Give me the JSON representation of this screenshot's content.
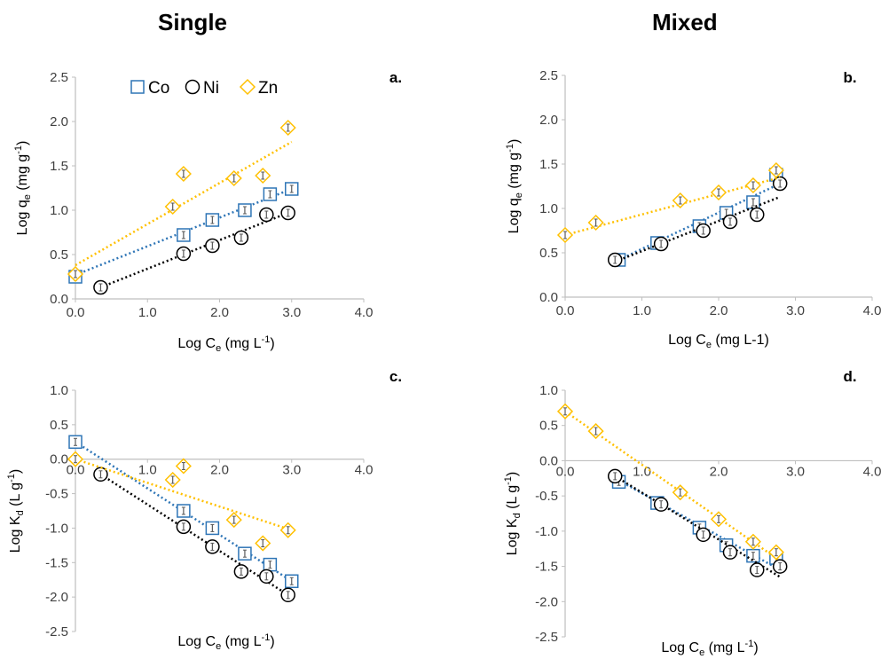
{
  "titles": {
    "left": "Single",
    "right": "Mixed"
  },
  "legend": [
    {
      "name": "Co",
      "marker": "square",
      "color": "#2E75B6"
    },
    {
      "name": "Ni",
      "marker": "circle",
      "color": "#000000"
    },
    {
      "name": "Zn",
      "marker": "diamond",
      "color": "#FFC000"
    }
  ],
  "chart_data": [
    {
      "id": "a",
      "type": "scatter",
      "panel_label": "a.",
      "xlabel": {
        "main": "Log C",
        "sub": "e",
        "tail": " (mg L",
        "sup": "-1",
        "end": ")"
      },
      "ylabel": {
        "main": "Log q",
        "sub": "e",
        "tail": " (mg g",
        "sup": "-1",
        "end": ")"
      },
      "xlim": [
        0,
        4
      ],
      "ylim": [
        0,
        2.5
      ],
      "xticks": [
        "0.0",
        "1.0",
        "2.0",
        "3.0",
        "4.0"
      ],
      "yticks": [
        "0.0",
        "0.5",
        "1.0",
        "1.5",
        "2.0",
        "2.5"
      ],
      "grid": false,
      "legend_position": "top-left",
      "series": [
        {
          "name": "Co",
          "trend": [
            [
              0,
              0.27
            ],
            [
              3.0,
              1.24
            ]
          ],
          "points": [
            [
              0,
              0.25
            ],
            [
              1.5,
              0.72
            ],
            [
              1.9,
              0.89
            ],
            [
              2.35,
              1.0
            ],
            [
              2.7,
              1.18
            ],
            [
              3.0,
              1.24
            ]
          ]
        },
        {
          "name": "Ni",
          "trend": [
            [
              0.35,
              0.13
            ],
            [
              2.95,
              0.97
            ]
          ],
          "points": [
            [
              0.35,
              0.13
            ],
            [
              1.5,
              0.51
            ],
            [
              1.9,
              0.6
            ],
            [
              2.3,
              0.69
            ],
            [
              2.65,
              0.95
            ],
            [
              2.95,
              0.97
            ]
          ]
        },
        {
          "name": "Zn",
          "trend": [
            [
              0,
              0.38
            ],
            [
              3.0,
              1.77
            ]
          ],
          "points": [
            [
              0,
              0.28
            ],
            [
              1.35,
              1.04
            ],
            [
              1.5,
              1.41
            ],
            [
              2.2,
              1.36
            ],
            [
              2.6,
              1.39
            ],
            [
              2.95,
              1.93
            ]
          ]
        }
      ]
    },
    {
      "id": "b",
      "type": "scatter",
      "panel_label": "b.",
      "xlabel": {
        "main": "Log C",
        "sub": "e",
        "tail": " (mg L-1)",
        "sup": "",
        "end": ""
      },
      "ylabel": {
        "main": "Log q",
        "sub": "e",
        "tail": " (mg g",
        "sup": "-1",
        "end": ")"
      },
      "xlim": [
        0,
        4
      ],
      "ylim": [
        0,
        2.5
      ],
      "xticks": [
        "0.0",
        "1.0",
        "2.0",
        "3.0",
        "4.0"
      ],
      "yticks": [
        "0.0",
        "0.5",
        "1.0",
        "1.5",
        "2.0",
        "2.5"
      ],
      "grid": false,
      "legend_position": "none",
      "series": [
        {
          "name": "Co",
          "trend": [
            [
              0.65,
              0.4
            ],
            [
              2.8,
              1.28
            ]
          ],
          "points": [
            [
              0.7,
              0.42
            ],
            [
              1.2,
              0.61
            ],
            [
              1.75,
              0.8
            ],
            [
              2.1,
              0.95
            ],
            [
              2.45,
              1.07
            ],
            [
              2.75,
              1.38
            ]
          ]
        },
        {
          "name": "Ni",
          "trend": [
            [
              0.65,
              0.4
            ],
            [
              2.8,
              1.13
            ]
          ],
          "points": [
            [
              0.65,
              0.42
            ],
            [
              1.25,
              0.6
            ],
            [
              1.8,
              0.75
            ],
            [
              2.15,
              0.85
            ],
            [
              2.5,
              0.93
            ],
            [
              2.8,
              1.28
            ]
          ]
        },
        {
          "name": "Zn",
          "trend": [
            [
              0,
              0.7
            ],
            [
              2.8,
              1.35
            ]
          ],
          "points": [
            [
              0,
              0.7
            ],
            [
              0.4,
              0.84
            ],
            [
              1.5,
              1.09
            ],
            [
              2.0,
              1.18
            ],
            [
              2.45,
              1.26
            ],
            [
              2.75,
              1.43
            ]
          ]
        }
      ]
    },
    {
      "id": "c",
      "type": "scatter",
      "panel_label": "c.",
      "xlabel": {
        "main": "Log C",
        "sub": "e",
        "tail": " (mg L",
        "sup": "-1",
        "end": ")"
      },
      "ylabel": {
        "main": "Log K",
        "sub": "d",
        "tail": " (L g",
        "sup": "-1",
        "end": ")"
      },
      "xlim": [
        0,
        4
      ],
      "ylim": [
        -2.5,
        1.0
      ],
      "xticks": [
        "0.0",
        "1.0",
        "2.0",
        "3.0",
        "4.0"
      ],
      "yticks": [
        "-2.5",
        "-2.0",
        "-1.5",
        "-1.0",
        "-0.5",
        "0.0",
        "0.5",
        "1.0"
      ],
      "grid": false,
      "legend_position": "none",
      "series": [
        {
          "name": "Co",
          "trend": [
            [
              0,
              0.25
            ],
            [
              3.0,
              -1.77
            ]
          ],
          "points": [
            [
              0,
              0.25
            ],
            [
              1.5,
              -0.75
            ],
            [
              1.9,
              -1.0
            ],
            [
              2.35,
              -1.37
            ],
            [
              2.7,
              -1.53
            ],
            [
              3.0,
              -1.77
            ]
          ]
        },
        {
          "name": "Ni",
          "trend": [
            [
              0.35,
              -0.22
            ],
            [
              2.95,
              -1.97
            ]
          ],
          "points": [
            [
              0.35,
              -0.22
            ],
            [
              1.5,
              -0.98
            ],
            [
              1.9,
              -1.27
            ],
            [
              2.3,
              -1.63
            ],
            [
              2.65,
              -1.7
            ],
            [
              2.95,
              -1.97
            ]
          ]
        },
        {
          "name": "Zn",
          "trend": [
            [
              0,
              0.0
            ],
            [
              3.0,
              -1.03
            ]
          ],
          "points": [
            [
              0,
              0.0
            ],
            [
              1.35,
              -0.3
            ],
            [
              1.5,
              -0.1
            ],
            [
              2.2,
              -0.88
            ],
            [
              2.6,
              -1.22
            ],
            [
              2.95,
              -1.03
            ]
          ]
        }
      ]
    },
    {
      "id": "d",
      "type": "scatter",
      "panel_label": "d.",
      "xlabel": {
        "main": "Log C",
        "sub": "e",
        "tail": " (mg L",
        "sup": "-1",
        "end": ")"
      },
      "ylabel": {
        "main": "Log K",
        "sub": "d",
        "tail": " (L g",
        "sup": "-1",
        "end": ")"
      },
      "xlim": [
        0,
        4
      ],
      "ylim": [
        -2.5,
        1.0
      ],
      "xticks": [
        "0.0",
        "1.0",
        "2.0",
        "3.0",
        "4.0"
      ],
      "yticks": [
        "-2.5",
        "-2.0",
        "-1.5",
        "-1.0",
        "-0.5",
        "0.0",
        "0.5",
        "1.0"
      ],
      "grid": false,
      "legend_position": "none",
      "series": [
        {
          "name": "Co",
          "trend": [
            [
              0.7,
              -0.28
            ],
            [
              2.8,
              -1.55
            ]
          ],
          "points": [
            [
              0.7,
              -0.3
            ],
            [
              1.2,
              -0.6
            ],
            [
              1.75,
              -0.95
            ],
            [
              2.1,
              -1.2
            ],
            [
              2.45,
              -1.35
            ],
            [
              2.75,
              -1.38
            ]
          ]
        },
        {
          "name": "Ni",
          "trend": [
            [
              0.65,
              -0.22
            ],
            [
              2.8,
              -1.65
            ]
          ],
          "points": [
            [
              0.65,
              -0.22
            ],
            [
              1.25,
              -0.62
            ],
            [
              1.8,
              -1.05
            ],
            [
              2.15,
              -1.3
            ],
            [
              2.5,
              -1.55
            ],
            [
              2.8,
              -1.5
            ]
          ]
        },
        {
          "name": "Zn",
          "trend": [
            [
              0,
              0.7
            ],
            [
              2.8,
              -1.42
            ]
          ],
          "points": [
            [
              0,
              0.7
            ],
            [
              0.4,
              0.42
            ],
            [
              1.5,
              -0.45
            ],
            [
              2.0,
              -0.83
            ],
            [
              2.45,
              -1.15
            ],
            [
              2.75,
              -1.3
            ]
          ]
        }
      ]
    }
  ]
}
